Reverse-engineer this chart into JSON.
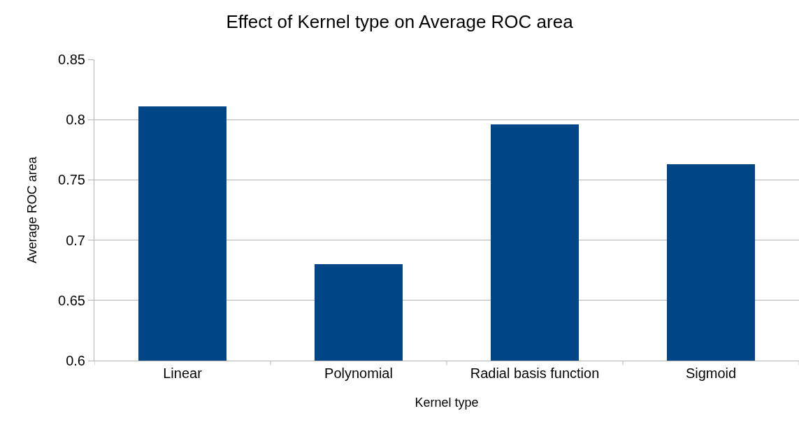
{
  "chart_data": {
    "type": "bar",
    "title": "Effect of Kernel type on Average ROC area",
    "xlabel": "Kernel type",
    "ylabel": "Average ROC area",
    "categories": [
      "Linear",
      "Polynomial",
      "Radial basis function",
      "Sigmoid"
    ],
    "values": [
      0.811,
      0.68,
      0.796,
      0.763
    ],
    "color": "#004586",
    "ylim": [
      0.6,
      0.85
    ],
    "yticks": [
      0.6,
      0.65,
      0.7,
      0.75,
      0.8,
      0.85
    ],
    "grid": "y"
  }
}
